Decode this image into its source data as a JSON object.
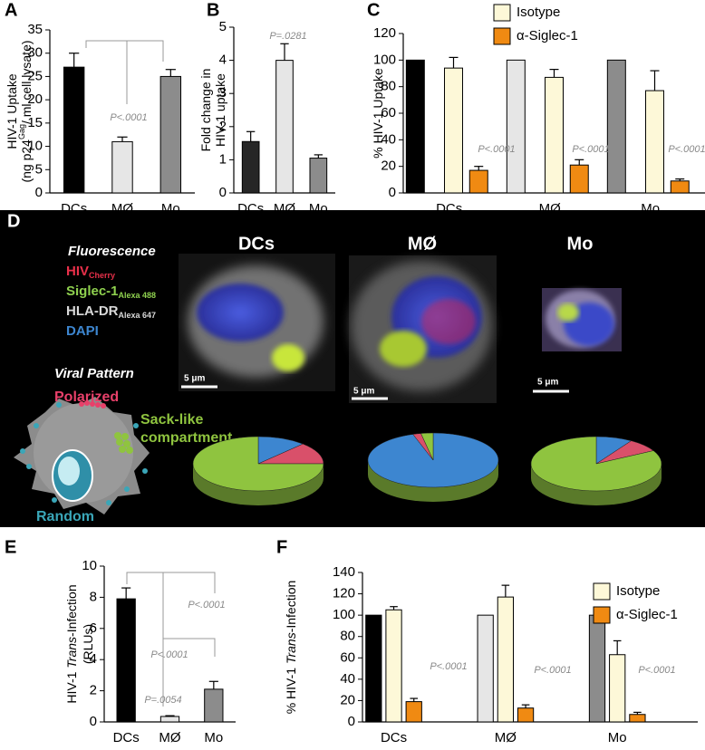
{
  "chart_data": [
    {
      "type": "bar",
      "panel_label": "A",
      "ylabel_lines": [
        [
          {
            "text": "HIV-1 Uptake"
          }
        ],
        [
          {
            "text": "(ng p24"
          },
          {
            "text": "Gag",
            "sup": true
          },
          {
            "text": "/ ml cell lysate)"
          }
        ]
      ],
      "categories": [
        "DCs",
        "MØ",
        "Mo"
      ],
      "series": [
        {
          "colors": [
            "#000000",
            "#e6e6e6",
            "#8c8c8c"
          ],
          "values": [
            27,
            11,
            25
          ],
          "errors": [
            3,
            1,
            1.5
          ]
        }
      ],
      "ylim": [
        0,
        35
      ],
      "yticks": [
        0,
        5,
        10,
        15,
        20,
        25,
        30,
        35
      ],
      "annotations": [
        "P<.0001"
      ]
    },
    {
      "type": "bar",
      "panel_label": "B",
      "ylabel_lines": [
        [
          {
            "text": "Fold change in"
          }
        ],
        [
          {
            "text": "HIV-1 uptake"
          }
        ]
      ],
      "categories": [
        "DCs",
        "MØ",
        "Mo"
      ],
      "series": [
        {
          "colors": [
            "#262626",
            "#e6e6e6",
            "#8c8c8c"
          ],
          "values": [
            1.55,
            4.0,
            1.05
          ],
          "errors": [
            0.3,
            0.5,
            0.1
          ]
        }
      ],
      "ylim": [
        0,
        5
      ],
      "yticks": [
        0,
        1,
        2,
        3,
        4,
        5
      ],
      "annotations": [
        "P=.0281"
      ]
    },
    {
      "type": "bar",
      "panel_label": "C",
      "ylabel_lines": [
        [
          {
            "text": "% HIV-1 Uptake"
          }
        ]
      ],
      "categories": [
        "DCs",
        "MØ",
        "Mo"
      ],
      "series": [
        {
          "colors": [
            "#000000",
            "#e6e6e6",
            "#8c8c8c"
          ],
          "values": [
            100,
            100,
            100
          ]
        },
        {
          "name": "Isotype",
          "color": "#fdf8d8",
          "values": [
            94,
            87,
            77
          ],
          "errors": [
            8,
            6,
            15
          ]
        },
        {
          "name": "α-Siglec-1",
          "color": "#f08a12",
          "values": [
            17,
            21,
            9
          ],
          "errors": [
            3,
            4,
            1.5
          ]
        }
      ],
      "ylim": [
        0,
        120
      ],
      "yticks": [
        0,
        20,
        40,
        60,
        80,
        100,
        120
      ],
      "annotations": [
        "P<.0001",
        "P<.0001",
        "P<.0001"
      ]
    },
    {
      "type": "pie",
      "panel_label": "D",
      "fluorescence_title": "Fluorescence",
      "channels": [
        {
          "name": "HIV",
          "sub": "Cherry",
          "color": "#e8304a"
        },
        {
          "name": "Siglec-1",
          "sub": "Alexa 488",
          "color": "#8fd14f"
        },
        {
          "name": "HLA-DR",
          "sub": "Alexa 647",
          "color": "#d9d9d9"
        },
        {
          "name": "DAPI",
          "color": "#3d86d0"
        }
      ],
      "pattern_title": "Viral Pattern",
      "patterns": [
        {
          "lines": [
            "Polarized"
          ],
          "color": "#e8406a"
        },
        {
          "lines": [
            "Sack-like",
            "compartment"
          ],
          "color": "#8fc43f"
        },
        {
          "lines": [
            "Random"
          ],
          "color": "#3aa6b8"
        }
      ],
      "titles": [
        "DCs",
        "MØ",
        "Mo"
      ],
      "scale_labels": [
        "5 μm",
        "5 μm",
        "5 μm"
      ],
      "pies": [
        {
          "values": [
            12,
            13,
            75
          ],
          "colors": [
            "#3d86d0",
            "#d9506a",
            "#8fc43f"
          ]
        },
        {
          "values": [
            95,
            2,
            3
          ],
          "colors": [
            "#3d86d0",
            "#d9506a",
            "#8fc43f"
          ]
        },
        {
          "values": [
            9,
            8,
            83
          ],
          "colors": [
            "#3d86d0",
            "#d9506a",
            "#8fc43f"
          ]
        }
      ]
    },
    {
      "type": "bar",
      "panel_label": "E",
      "ylabel_lines": [
        [
          {
            "text": "HIV-1 "
          },
          {
            "text": "Trans",
            "italic": true
          },
          {
            "text": "-Infection"
          }
        ],
        [
          {
            "text": "(RLUs)"
          }
        ]
      ],
      "categories": [
        "DCs",
        "MØ",
        "Mo"
      ],
      "series": [
        {
          "colors": [
            "#000000",
            "#e6e6e6",
            "#8c8c8c"
          ],
          "values": [
            7.9,
            0.35,
            2.1
          ],
          "errors": [
            0.7,
            0.05,
            0.5
          ]
        }
      ],
      "ylim": [
        0,
        10
      ],
      "yticks": [
        0,
        2,
        4,
        6,
        8,
        10
      ],
      "annotations": [
        "P<.0001",
        "P<.0001",
        "P=.0054"
      ]
    },
    {
      "type": "bar",
      "panel_label": "F",
      "ylabel_lines": [
        [
          {
            "text": "% HIV-1 "
          },
          {
            "text": "Trans",
            "italic": true
          },
          {
            "text": "-Infection"
          }
        ]
      ],
      "categories": [
        "DCs",
        "MØ",
        "Mo"
      ],
      "series": [
        {
          "colors": [
            "#000000",
            "#e6e6e6",
            "#8c8c8c"
          ],
          "values": [
            100,
            100,
            100
          ]
        },
        {
          "name": "Isotype",
          "color": "#fdf8d8",
          "values": [
            105,
            117,
            63
          ],
          "errors": [
            3,
            11,
            13
          ]
        },
        {
          "name": "α-Siglec-1",
          "color": "#f08a12",
          "values": [
            19,
            13,
            7
          ],
          "errors": [
            3,
            3,
            2
          ]
        }
      ],
      "ylim": [
        0,
        140
      ],
      "yticks": [
        0,
        20,
        40,
        60,
        80,
        100,
        120,
        140
      ],
      "annotations": [
        "P<.0001",
        "P<.0001",
        "P<.0001"
      ]
    }
  ]
}
